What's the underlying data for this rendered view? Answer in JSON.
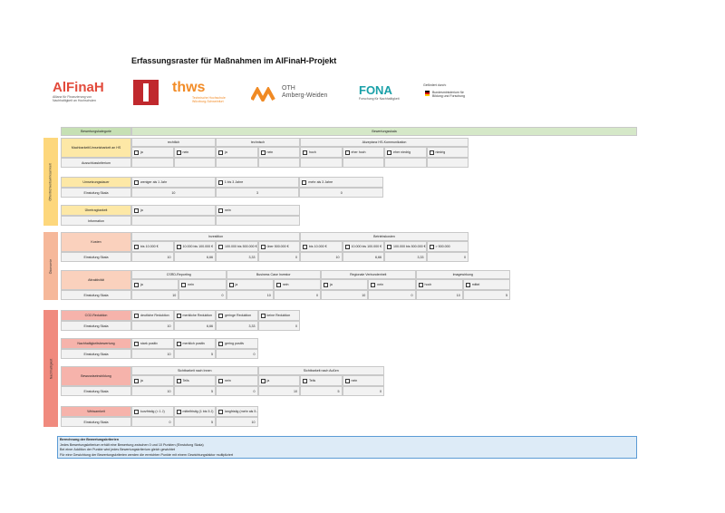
{
  "title": "Erfassungsraster für Maßnahmen im AlFinaH-Projekt",
  "logos": {
    "alfinah": {
      "name": "AlFinaH",
      "tagline": "Allianz für Finanzierung von Nachhaltigkeit an Hochschulen"
    },
    "thws": {
      "name": "thws",
      "tagline": "Technische Hochschule Würzburg-Schweinfurt"
    },
    "oth": {
      "name": "OTH",
      "tagline": "Amberg-Weiden"
    },
    "fona": {
      "name": "FONA",
      "tagline": "Forschung für Nachhaltigkeit"
    },
    "bmbf": {
      "caption": "Gefördert durch:",
      "name": "Bundesministerium für Bildung und Forschung"
    }
  },
  "header": {
    "category": "Bewertungskategorie",
    "scale": "Bewertungsskala"
  },
  "sections": [
    {
      "name": "Öffentlichkeitswirksamkeit",
      "rows": [
        {
          "label": "Machbarkeit/Umsetzbarkeit an HS",
          "score_label": "Ausschlusskriterium",
          "groups": [
            {
              "heading": "rechtlich",
              "options": [
                "ja",
                "nein"
              ]
            },
            {
              "heading": "technisch",
              "options": [
                "ja",
                "nein"
              ]
            },
            {
              "heading": "Akzeptanz HS-Kommunikation",
              "options": [
                "hoch",
                "eher hoch",
                "eher niedrig",
                "niedrig"
              ]
            }
          ]
        },
        {
          "label": "Umsetzungsdauer",
          "score_label": "Einstufung Skala",
          "groups": [
            {
              "options": [
                "weniger als 1 Jahr",
                "1 bis 3 Jahre",
                "mehr als 3 Jahre"
              ],
              "scores": [
                10,
                3,
                0
              ]
            }
          ]
        },
        {
          "label": "Übertragbarkeit",
          "score_label": "Information",
          "groups": [
            {
              "options": [
                "ja",
                "nein"
              ]
            }
          ]
        }
      ]
    },
    {
      "name": "Ökonomie",
      "rows": [
        {
          "label": "Kosten",
          "score_label": "Einstufung Skala",
          "groups": [
            {
              "heading": "Investition",
              "options": [
                "bis 10.000 €",
                "10.000 bis 100.000 €",
                "100.000 bis 500.000 €",
                "über 500.000 €"
              ],
              "scores": [
                10,
                "6,66",
                "3,33",
                0
              ]
            },
            {
              "heading": "Betriebskosten",
              "options": [
                "bis 10.000 €",
                "10.000 bis 100.000 €",
                "100.000 bis 500.000 €",
                "> 500.000"
              ],
              "scores": [
                10,
                "6,66",
                "3,33",
                0
              ]
            }
          ]
        },
        {
          "label": "Attraktivität",
          "score_label": "Einstufung Skala",
          "groups": [
            {
              "heading": "CSRD-Reporting",
              "options": [
                "ja",
                "nein"
              ],
              "scores": [
                10,
                0
              ]
            },
            {
              "heading": "Business Case Investor",
              "options": [
                "ja",
                "nein"
              ],
              "scores": [
                10,
                0
              ]
            },
            {
              "heading": "Regionale Verbundenheit",
              "options": [
                "ja",
                "nein"
              ],
              "scores": [
                10,
                0
              ]
            },
            {
              "heading": "Imagewirkung",
              "options": [
                "hoch",
                "mittel"
              ],
              "scores": [
                10,
                5
              ]
            }
          ]
        }
      ]
    },
    {
      "name": "Nachhaltigkeit",
      "rows": [
        {
          "label": "CO2-Reduktion",
          "score_label": "Einstufung Skala",
          "groups": [
            {
              "options": [
                "deutliche Reduktion",
                "merkliche Reduktion",
                "geringe Reduktion",
                "keine Reduktion"
              ],
              "scores": [
                10,
                "6,66",
                "3,33",
                0
              ]
            }
          ]
        },
        {
          "label": "Nachhaltigkeitsbewertung",
          "score_label": "Einstufung Skala",
          "groups": [
            {
              "options": [
                "stark positiv",
                "merklich positiv",
                "gering positiv"
              ],
              "scores": [
                10,
                5,
                0
              ]
            }
          ]
        },
        {
          "label": "Bewusstseinsbildung",
          "score_label": "Einstufung Skala",
          "groups": [
            {
              "heading": "Sichtbarkeit nach Innen",
              "options": [
                "ja",
                "Teils",
                "nein"
              ],
              "scores": [
                10,
                5,
                0
              ]
            },
            {
              "heading": "Sichtbarkeit nach Außen",
              "options": [
                "ja",
                "Teils",
                "nein"
              ],
              "scores": [
                10,
                5,
                0
              ]
            }
          ]
        },
        {
          "label": "Wirksamkeit",
          "score_label": "Einstufung Skala",
          "groups": [
            {
              "options": [
                "kurzfristig (< 1 J)",
                "mittelfristig (1 bis 5 J)",
                "langfristig (mehr als 5 J)"
              ],
              "scores": [
                0,
                5,
                10
              ]
            }
          ]
        }
      ]
    }
  ],
  "footer": [
    "Berechnung der Bewertungskriterien",
    "Jedes Bewertungskriterium erhält eine Bewertung zwischen 0 und 10 Punkten (Einstufung Skala)",
    "Bei einer Addition der Punkte wird jedes Bewertungskriterium gleich gewichtet",
    "Für eine Gewichtung der Bewertungskriterien werden die erreichten Punkte mit einem Gewichtungsfaktor multipliziert"
  ]
}
